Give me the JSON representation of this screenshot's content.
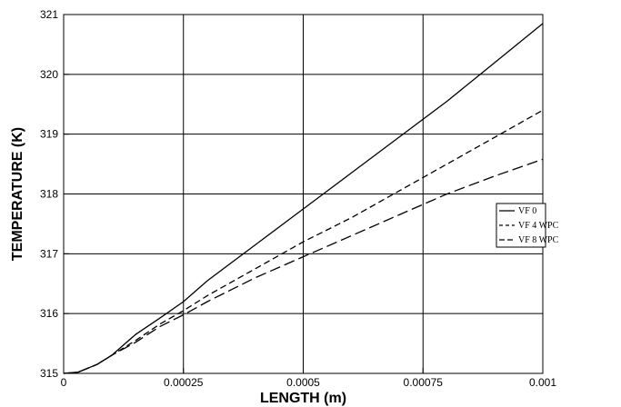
{
  "chart_data": {
    "type": "line",
    "title": "",
    "xlabel": "LENGTH (m)",
    "ylabel": "TEMPERATURE (K)",
    "xlim": [
      0,
      0.001
    ],
    "ylim": [
      315,
      321
    ],
    "x_ticks": [
      0,
      0.00025,
      0.0005,
      0.00075,
      0.001
    ],
    "x_tick_labels": [
      "0",
      "0.00025",
      "0.0005",
      "0.00075",
      "0.001"
    ],
    "y_ticks": [
      315,
      316,
      317,
      318,
      319,
      320,
      321
    ],
    "y_tick_labels": [
      "315",
      "316",
      "317",
      "318",
      "319",
      "320",
      "321"
    ],
    "grid": true,
    "legend_position": "right",
    "series": [
      {
        "name": "VF 0",
        "style": "solid",
        "x": [
          0,
          3e-05,
          7e-05,
          0.0001,
          0.00015,
          0.0002,
          0.00025,
          0.0003,
          0.0004,
          0.0005,
          0.0006,
          0.0007,
          0.0008,
          0.0009,
          0.001
        ],
        "values": [
          315.0,
          315.02,
          315.15,
          315.3,
          315.65,
          315.92,
          316.2,
          316.55,
          317.15,
          317.75,
          318.35,
          318.95,
          319.55,
          320.2,
          320.85
        ]
      },
      {
        "name": "VF 4 WPC",
        "style": "dashed",
        "x": [
          0,
          3e-05,
          7e-05,
          0.0001,
          0.00015,
          0.0002,
          0.00025,
          0.0003,
          0.0004,
          0.0005,
          0.0006,
          0.0007,
          0.0008,
          0.0009,
          0.001
        ],
        "values": [
          315.0,
          315.02,
          315.15,
          315.3,
          315.55,
          315.82,
          316.05,
          316.3,
          316.75,
          317.2,
          317.6,
          318.05,
          318.5,
          318.95,
          319.4
        ]
      },
      {
        "name": "VF 8 WPC",
        "style": "long-dashed",
        "x": [
          0,
          3e-05,
          7e-05,
          0.0001,
          0.00015,
          0.0002,
          0.00025,
          0.0003,
          0.0004,
          0.0005,
          0.0006,
          0.0007,
          0.0008,
          0.0009,
          0.001
        ],
        "values": [
          315.0,
          315.02,
          315.15,
          315.3,
          315.52,
          315.78,
          315.98,
          316.2,
          316.6,
          316.95,
          317.3,
          317.65,
          318.0,
          318.3,
          318.58
        ]
      }
    ]
  }
}
